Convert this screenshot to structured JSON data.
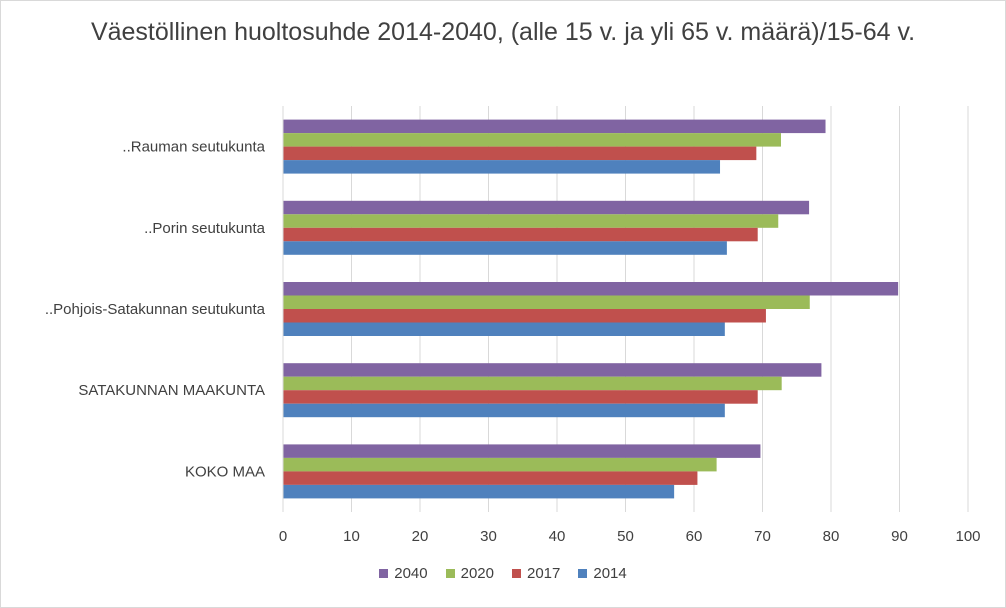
{
  "chart_data": {
    "type": "bar",
    "orientation": "horizontal",
    "title": "Väestöllinen huoltosuhde 2014-2040, (alle 15 v. ja yli 65 v. määrä)/15-64 v.",
    "categories": [
      "..Rauman seutukunta",
      "..Porin seutukunta",
      "..Pohjois-Satakunnan seutukunta",
      "SATAKUNNAN MAAKUNTA",
      "KOKO MAA"
    ],
    "series": [
      {
        "name": "2040",
        "color": "#8064a2",
        "values": [
          79.2,
          76.8,
          89.8,
          78.6,
          69.7
        ]
      },
      {
        "name": "2020",
        "color": "#9bbb59",
        "values": [
          72.7,
          72.3,
          76.9,
          72.8,
          63.3
        ]
      },
      {
        "name": "2017",
        "color": "#c0504d",
        "values": [
          69.1,
          69.3,
          70.5,
          69.3,
          60.5
        ]
      },
      {
        "name": "2014",
        "color": "#4f81bd",
        "values": [
          63.8,
          64.8,
          64.5,
          64.5,
          57.1
        ]
      }
    ],
    "legend_order": [
      "2040",
      "2020",
      "2017",
      "2014"
    ],
    "xlim": [
      0,
      100
    ],
    "x_ticks": [
      0,
      10,
      20,
      30,
      40,
      50,
      60,
      70,
      80,
      90,
      100
    ],
    "grid": true,
    "legend_position": "bottom"
  }
}
